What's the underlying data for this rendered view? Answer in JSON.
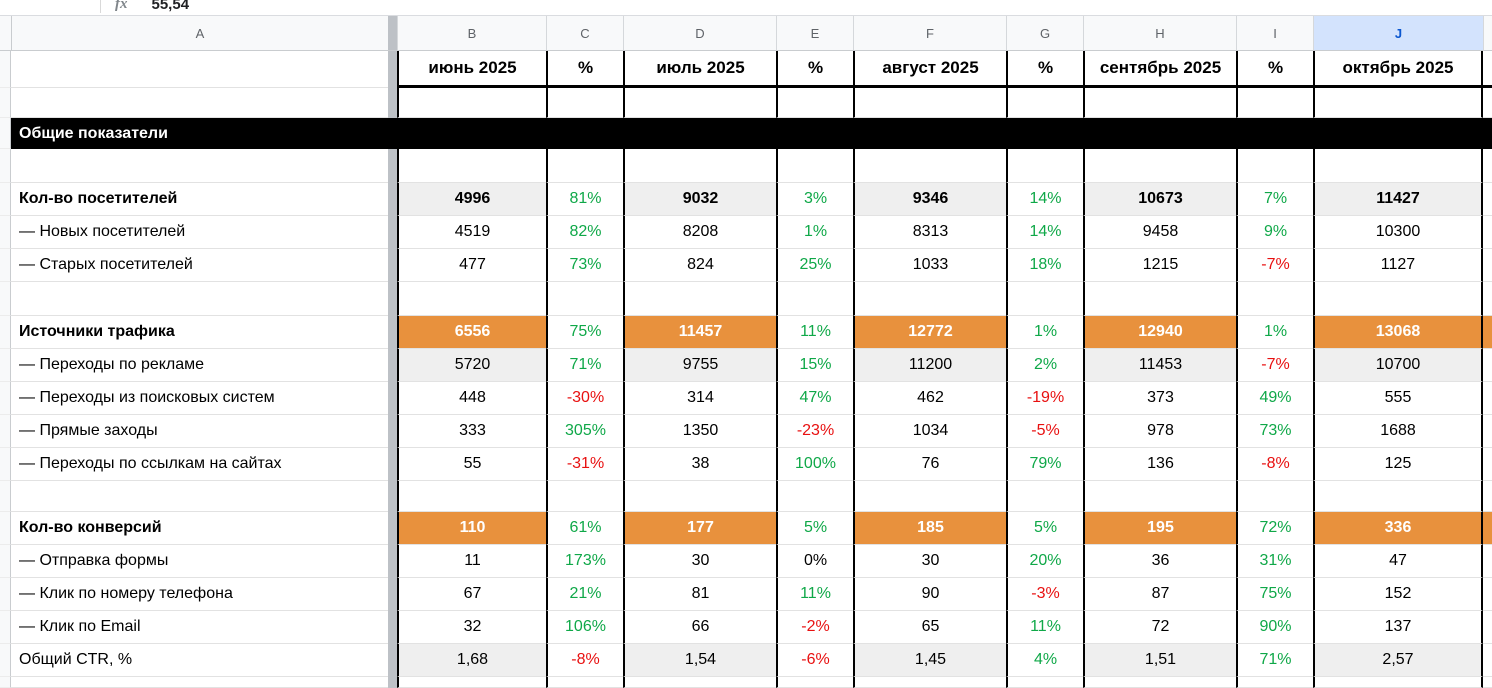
{
  "formula_bar": {
    "fx_label": "fx",
    "value": "55,54"
  },
  "column_header_row": {
    "letters": [
      "A",
      "B",
      "C",
      "D",
      "E",
      "F",
      "G",
      "H",
      "I",
      "J"
    ],
    "selected": "J"
  },
  "colors": {
    "green": "#0fa848",
    "red": "#e81010",
    "orange": "#e8913d",
    "orange_text": "#ffffff",
    "gray_cell": "#efefef",
    "banner_bg": "#000000",
    "banner_text": "#ffffff",
    "selected_header_bg": "#d3e3fd",
    "selected_header_text": "#0b57d0"
  },
  "table": {
    "rows": [
      {
        "type": "month-header",
        "label": "",
        "values": [
          "июнь 2025",
          "%",
          "июль 2025",
          "%",
          "август 2025",
          "%",
          "сентябрь 2025",
          "%",
          "октябрь 2025"
        ]
      },
      {
        "type": "spacer"
      },
      {
        "type": "banner",
        "label": "Общие показатели"
      },
      {
        "type": "spacer"
      },
      {
        "type": "data",
        "style": "header-gray",
        "label": "Кол-во посетителей",
        "label_bold": true,
        "values": [
          "4996",
          "81%",
          "9032",
          "3%",
          "9346",
          "14%",
          "10673",
          "7%",
          "11427"
        ],
        "pct_colors": [
          "green",
          "green",
          "green",
          "green"
        ]
      },
      {
        "type": "data",
        "style": "plain",
        "label": "— Новых посетителей",
        "label_bold": false,
        "values": [
          "4519",
          "82%",
          "8208",
          "1%",
          "8313",
          "14%",
          "9458",
          "9%",
          "10300"
        ],
        "pct_colors": [
          "green",
          "green",
          "green",
          "green"
        ]
      },
      {
        "type": "data",
        "style": "plain",
        "label": "— Старых посетителей",
        "label_bold": false,
        "values": [
          "477",
          "73%",
          "824",
          "25%",
          "1033",
          "18%",
          "1215",
          "-7%",
          "1127"
        ],
        "pct_colors": [
          "green",
          "green",
          "green",
          "red"
        ]
      },
      {
        "type": "spacer"
      },
      {
        "type": "data",
        "style": "orange",
        "label": "Источники трафика",
        "label_bold": true,
        "values": [
          "6556",
          "75%",
          "11457",
          "11%",
          "12772",
          "1%",
          "12940",
          "1%",
          "13068"
        ],
        "pct_colors": [
          "green",
          "green",
          "green",
          "green"
        ]
      },
      {
        "type": "data",
        "style": "sub-gray",
        "label": "— Переходы по рекламе",
        "label_bold": false,
        "values": [
          "5720",
          "71%",
          "9755",
          "15%",
          "11200",
          "2%",
          "11453",
          "-7%",
          "10700"
        ],
        "pct_colors": [
          "green",
          "green",
          "green",
          "red"
        ]
      },
      {
        "type": "data",
        "style": "plain",
        "label": "— Переходы из поисковых систем",
        "label_bold": false,
        "values": [
          "448",
          "-30%",
          "314",
          "47%",
          "462",
          "-19%",
          "373",
          "49%",
          "555"
        ],
        "pct_colors": [
          "red",
          "green",
          "red",
          "green"
        ]
      },
      {
        "type": "data",
        "style": "plain",
        "label": "— Прямые заходы",
        "label_bold": false,
        "values": [
          "333",
          "305%",
          "1350",
          "-23%",
          "1034",
          "-5%",
          "978",
          "73%",
          "1688"
        ],
        "pct_colors": [
          "green",
          "red",
          "red",
          "green"
        ]
      },
      {
        "type": "data",
        "style": "plain",
        "label": "— Переходы по ссылкам на сайтах",
        "label_bold": false,
        "values": [
          "55",
          "-31%",
          "38",
          "100%",
          "76",
          "79%",
          "136",
          "-8%",
          "125"
        ],
        "pct_colors": [
          "red",
          "green",
          "green",
          "red"
        ]
      },
      {
        "type": "spacer"
      },
      {
        "type": "data",
        "style": "orange",
        "label": "Кол-во конверсий",
        "label_bold": true,
        "values": [
          "110",
          "61%",
          "177",
          "5%",
          "185",
          "5%",
          "195",
          "72%",
          "336"
        ],
        "pct_colors": [
          "green",
          "green",
          "green",
          "green"
        ]
      },
      {
        "type": "data",
        "style": "plain",
        "label": "— Отправка формы",
        "label_bold": false,
        "values": [
          "11",
          "173%",
          "30",
          "0%",
          "30",
          "20%",
          "36",
          "31%",
          "47"
        ],
        "pct_colors": [
          "green",
          "black",
          "green",
          "green"
        ]
      },
      {
        "type": "data",
        "style": "plain",
        "label": "— Клик по номеру телефона",
        "label_bold": false,
        "values": [
          "67",
          "21%",
          "81",
          "11%",
          "90",
          "-3%",
          "87",
          "75%",
          "152"
        ],
        "pct_colors": [
          "green",
          "green",
          "red",
          "green"
        ]
      },
      {
        "type": "data",
        "style": "plain",
        "label": "— Клик по Email",
        "label_bold": false,
        "values": [
          "32",
          "106%",
          "66",
          "-2%",
          "65",
          "11%",
          "72",
          "90%",
          "137"
        ],
        "pct_colors": [
          "green",
          "red",
          "green",
          "green"
        ]
      },
      {
        "type": "data",
        "style": "sub-gray",
        "label": "Общий CTR, %",
        "label_bold": false,
        "values": [
          "1,68",
          "-8%",
          "1,54",
          "-6%",
          "1,45",
          "4%",
          "1,51",
          "71%",
          "2,57"
        ],
        "pct_colors": [
          "red",
          "red",
          "green",
          "green"
        ]
      },
      {
        "type": "spacer"
      }
    ]
  }
}
